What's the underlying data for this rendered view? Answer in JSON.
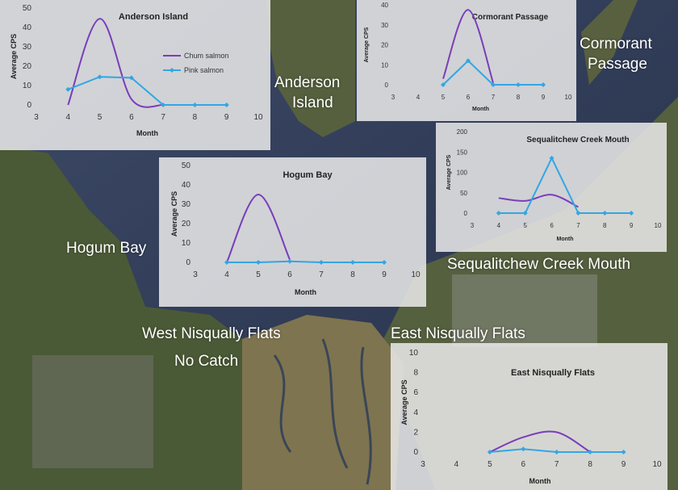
{
  "map": {
    "labels": {
      "anderson_1": "Anderson",
      "anderson_2": "Island",
      "cormorant_1": "Cormorant",
      "cormorant_2": "Passage",
      "hogum": "Hogum Bay",
      "sequalitchew": "Sequalitchew Creek Mouth",
      "west_flats": "West Nisqually Flats",
      "no_catch": "No Catch",
      "east_flats": "East Nisqually Flats"
    },
    "colors": {
      "water": "#33405a",
      "land": "#4f5a3a",
      "land_light": "#7c8068",
      "mudflat": "#8a7a4e"
    }
  },
  "chart_data": [
    {
      "id": "anderson",
      "type": "line",
      "title": "Anderson Island",
      "xlabel": "Month",
      "ylabel": "Average CPS",
      "xlim": [
        3,
        10
      ],
      "ylim": [
        0,
        50
      ],
      "xticks": [
        3,
        4,
        5,
        6,
        7,
        8,
        9,
        10
      ],
      "yticks": [
        0,
        10,
        20,
        30,
        40,
        50
      ],
      "legend": "right",
      "series": [
        {
          "name": "Chum salmon",
          "color": "#7a3db8",
          "x": [
            4,
            5,
            6,
            7
          ],
          "y": [
            0,
            44.5,
            3,
            0
          ],
          "markers": false
        },
        {
          "name": "Pink salmon",
          "color": "#33a6e3",
          "x": [
            4,
            5,
            6,
            7,
            8,
            9
          ],
          "y": [
            8,
            14.5,
            14,
            0,
            0,
            0
          ],
          "markers": true
        }
      ]
    },
    {
      "id": "cormorant",
      "type": "line",
      "title": "Cormorant Passage",
      "xlabel": "Month",
      "ylabel": "Average CPS",
      "xlim": [
        3,
        10
      ],
      "ylim": [
        0,
        40
      ],
      "xticks": [
        3,
        4,
        5,
        6,
        7,
        8,
        9,
        10
      ],
      "yticks": [
        0,
        10,
        20,
        30,
        40
      ],
      "legend": "none",
      "series": [
        {
          "name": "Chum salmon",
          "color": "#7a3db8",
          "x": [
            5,
            6,
            7
          ],
          "y": [
            3,
            37.5,
            1
          ],
          "markers": false
        },
        {
          "name": "Pink salmon",
          "color": "#33a6e3",
          "x": [
            5,
            6,
            7,
            8,
            9
          ],
          "y": [
            0,
            12,
            0,
            0,
            0
          ],
          "markers": true
        }
      ]
    },
    {
      "id": "sequalitchew",
      "type": "line",
      "title": "Sequalitchew Creek Mouth",
      "xlabel": "Month",
      "ylabel": "Average CPS",
      "xlim": [
        3,
        10
      ],
      "ylim": [
        0,
        200
      ],
      "xticks": [
        3,
        4,
        5,
        6,
        7,
        8,
        9,
        10
      ],
      "yticks": [
        0,
        50,
        100,
        150,
        200
      ],
      "legend": "none",
      "series": [
        {
          "name": "Chum salmon",
          "color": "#7a3db8",
          "x": [
            4,
            5,
            6,
            7
          ],
          "y": [
            37,
            30,
            45,
            15
          ],
          "markers": false
        },
        {
          "name": "Pink salmon",
          "color": "#33a6e3",
          "x": [
            4,
            5,
            6,
            7,
            8,
            9
          ],
          "y": [
            0,
            0,
            135,
            0,
            0,
            0
          ],
          "markers": true
        }
      ]
    },
    {
      "id": "hogum",
      "type": "line",
      "title": "Hogum Bay",
      "xlabel": "Month",
      "ylabel": "Average CPS",
      "xlim": [
        3,
        10
      ],
      "ylim": [
        0,
        50
      ],
      "xticks": [
        3,
        4,
        5,
        6,
        7,
        8,
        9,
        10
      ],
      "yticks": [
        0,
        10,
        20,
        30,
        40,
        50
      ],
      "legend": "none",
      "series": [
        {
          "name": "Chum salmon",
          "color": "#7a3db8",
          "x": [
            4,
            5,
            6
          ],
          "y": [
            0,
            35,
            1.5
          ],
          "markers": false
        },
        {
          "name": "Pink salmon",
          "color": "#33a6e3",
          "x": [
            4,
            5,
            6,
            7,
            8,
            9
          ],
          "y": [
            0,
            0,
            0.5,
            0,
            0,
            0
          ],
          "markers": true
        }
      ]
    },
    {
      "id": "east",
      "type": "line",
      "title": "East Nisqually Flats",
      "xlabel": "Month",
      "ylabel": "Average CPS",
      "xlim": [
        3,
        10
      ],
      "ylim": [
        0,
        10
      ],
      "xticks": [
        3,
        4,
        5,
        6,
        7,
        8,
        9,
        10
      ],
      "yticks": [
        0,
        2,
        4,
        6,
        8,
        10
      ],
      "legend": "none",
      "series": [
        {
          "name": "Chum salmon",
          "color": "#7a3db8",
          "x": [
            5,
            6,
            7,
            8
          ],
          "y": [
            0,
            1.5,
            2,
            0
          ],
          "markers": false
        },
        {
          "name": "Pink salmon",
          "color": "#33a6e3",
          "x": [
            5,
            6,
            7,
            8,
            9
          ],
          "y": [
            0,
            0.3,
            0,
            0,
            0
          ],
          "markers": true
        }
      ]
    }
  ]
}
